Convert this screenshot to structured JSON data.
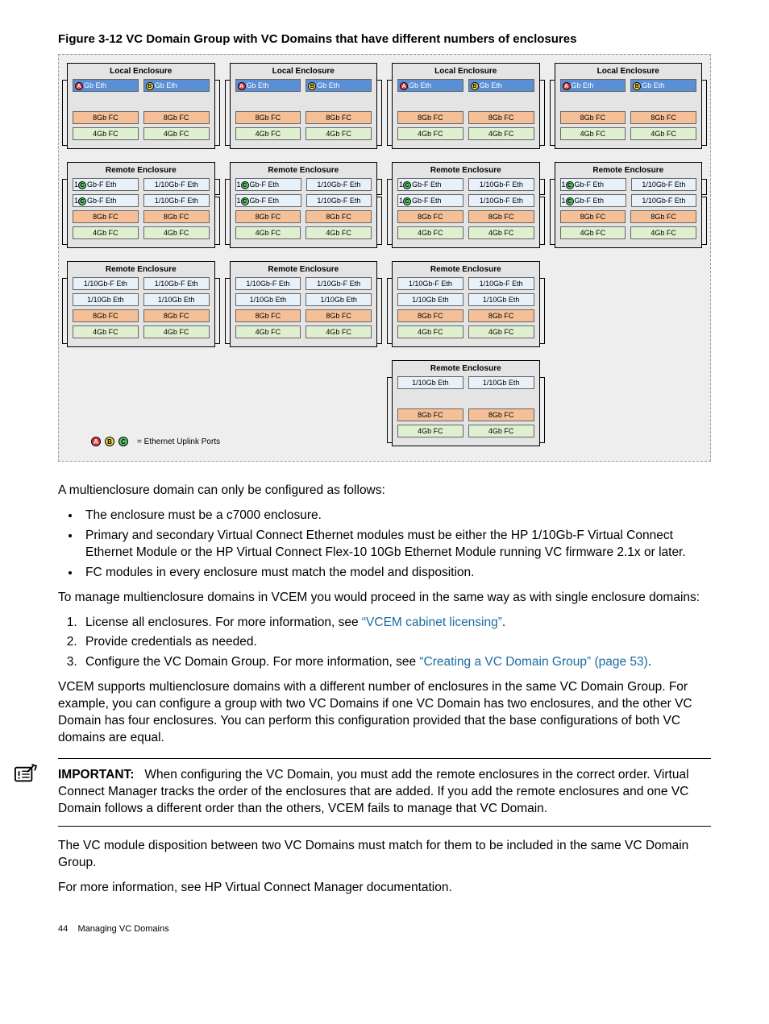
{
  "figure_title": "Figure 3-12 VC Domain Group with VC Domains that have different numbers of enclosures",
  "colors": {
    "eth_blue": "#5a8fd6",
    "eth_light": "#e8f0fa",
    "fc8": "#f5c097",
    "fc4": "#dff0d0",
    "port_a": "#e23b3b",
    "port_b": "#f5d94a",
    "port_c": "#5bc46a",
    "enc_bg": "#e4e4e4",
    "diagram_bg": "#eeeeee"
  },
  "labels": {
    "local": "Local Enclosure",
    "remote": "Remote Enclosure",
    "gb_eth": "Gb Eth",
    "gbf_eth": "Gb-F Eth",
    "ten_gbf": "1/10Gb-F Eth",
    "ten_gb": "1/10Gb Eth",
    "fc8": "8Gb FC",
    "fc4": "4Gb FC",
    "legend": "= Ethernet Uplink Ports"
  },
  "columns": [
    {
      "enclosures": [
        "local",
        "remote1",
        "remote2"
      ]
    },
    {
      "enclosures": [
        "local",
        "remote1",
        "remote2"
      ]
    },
    {
      "enclosures": [
        "local",
        "remote1",
        "remote2",
        "remote3"
      ]
    },
    {
      "enclosures": [
        "local",
        "remote1"
      ]
    }
  ],
  "text": {
    "p1": "A multienclosure domain can only be configured as follows:",
    "b1": "The enclosure must be a c7000 enclosure.",
    "b2": "Primary and secondary Virtual Connect Ethernet modules must be either the HP 1/10Gb-F Virtual Connect Ethernet Module or the HP Virtual Connect Flex-10 10Gb Ethernet Module running VC firmware 2.1x or later.",
    "b3": "FC modules in every enclosure must match the model and disposition.",
    "p2": "To manage multienclosure domains in VCEM you would proceed in the same way as with single enclosure domains:",
    "n1a": "License all enclosures. For more information, see ",
    "n1link": "“VCEM cabinet licensing”",
    "n1b": ".",
    "n2": "Provide credentials as needed.",
    "n3a": "Configure the VC Domain Group. For more information, see ",
    "n3link": "“Creating a VC Domain Group” (page 53)",
    "n3b": ".",
    "p3": "VCEM supports multienclosure domains with a different number of enclosures in the same VC Domain Group. For example, you can configure a group with two VC Domains if one VC Domain has two enclosures, and the other VC Domain has four enclosures. You can perform this configuration provided that the base configurations of both VC domains are equal.",
    "imp_label": "IMPORTANT:",
    "imp_body": "When configuring the VC Domain, you must add the remote enclosures in the correct order. Virtual Connect Manager tracks the order of the enclosures that are added. If you add the remote enclosures and one VC Domain follows a different order than the others, VCEM fails to manage that VC Domain.",
    "p4": "The VC module disposition between two VC Domains must match for them to be included in the same VC Domain Group.",
    "p5": "For more information, see HP Virtual Connect Manager documentation.",
    "footer_page": "44",
    "footer_title": "Managing VC Domains"
  }
}
